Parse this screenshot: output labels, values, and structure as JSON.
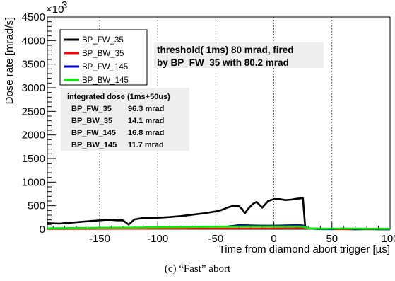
{
  "chart_data": {
    "type": "line",
    "xlabel": "Time from diamond abort trigger [µs]",
    "ylabel": "Dose rate [mrad/s]",
    "y_multiplier": "×10",
    "y_multiplier_exp": "3",
    "xlim": [
      -195,
      100
    ],
    "ylim": [
      0,
      4500
    ],
    "x_ticks": [
      -150,
      -100,
      -50,
      0,
      50,
      100
    ],
    "y_ticks": [
      0,
      500,
      1000,
      1500,
      2000,
      2500,
      3000,
      3500,
      4000,
      4500
    ],
    "vertical_grid_at": [
      -150,
      -100,
      -50,
      0,
      50,
      100
    ],
    "legend_placement": "top-left",
    "annotation": {
      "line1": "threshold( 1ms) 80 mrad, fired",
      "line2": "by BP_FW_35  with  80.2 mrad"
    },
    "dose_box": {
      "title": "integrated dose (1ms+50us)",
      "rows": [
        {
          "name": "BP_FW_35",
          "value": "96.3 mrad"
        },
        {
          "name": "BP_BW_35",
          "value": "14.1 mrad"
        },
        {
          "name": "BP_FW_145",
          "value": "16.8 mrad"
        },
        {
          "name": "BP_BW_145",
          "value": "11.7 mrad"
        }
      ]
    },
    "series": [
      {
        "name": "BP_FW_35",
        "color": "#000000",
        "x": [
          -195,
          -185,
          -175,
          -165,
          -155,
          -145,
          -140,
          -135,
          -130,
          -125,
          -120,
          -115,
          -110,
          -100,
          -90,
          -80,
          -70,
          -60,
          -50,
          -45,
          -40,
          -35,
          -30,
          -27,
          -25,
          -22,
          -18,
          -15,
          -10,
          -5,
          0,
          5,
          10,
          15,
          20,
          25,
          27,
          30,
          40,
          50,
          60,
          70,
          80,
          90,
          100
        ],
        "y": [
          130,
          120,
          140,
          160,
          180,
          200,
          200,
          190,
          190,
          100,
          210,
          230,
          245,
          245,
          260,
          280,
          310,
          340,
          380,
          410,
          460,
          500,
          490,
          420,
          340,
          440,
          540,
          580,
          460,
          600,
          640,
          640,
          620,
          630,
          650,
          660,
          30,
          20,
          10,
          5,
          5,
          0,
          5,
          0,
          0
        ]
      },
      {
        "name": "BP_BW_35",
        "color": "#ff0000",
        "x": [
          -195,
          -150,
          -100,
          -50,
          0,
          25,
          30,
          50,
          100
        ],
        "y": [
          5,
          8,
          10,
          15,
          20,
          25,
          10,
          0,
          0
        ]
      },
      {
        "name": "BP_FW_145",
        "color": "#0000cc",
        "x": [
          -195,
          -170,
          -150,
          -120,
          -100,
          -80,
          -60,
          -40,
          -30,
          -20,
          -10,
          0,
          10,
          20,
          25,
          28,
          32,
          40,
          50,
          55,
          60,
          70,
          80,
          90,
          100
        ],
        "y": [
          20,
          25,
          30,
          35,
          40,
          50,
          55,
          60,
          90,
          85,
          80,
          80,
          85,
          90,
          85,
          40,
          10,
          0,
          0,
          10,
          20,
          0,
          5,
          0,
          0
        ]
      },
      {
        "name": "BP_BW_145",
        "color": "#00ee00",
        "x": [
          -195,
          -170,
          -150,
          -120,
          -100,
          -80,
          -60,
          -40,
          -20,
          0,
          20,
          25,
          30,
          40,
          60,
          80,
          100
        ],
        "y": [
          20,
          25,
          30,
          35,
          40,
          45,
          50,
          55,
          60,
          60,
          60,
          55,
          20,
          10,
          15,
          10,
          10
        ]
      }
    ]
  },
  "caption": "(c) “Fast” abort"
}
